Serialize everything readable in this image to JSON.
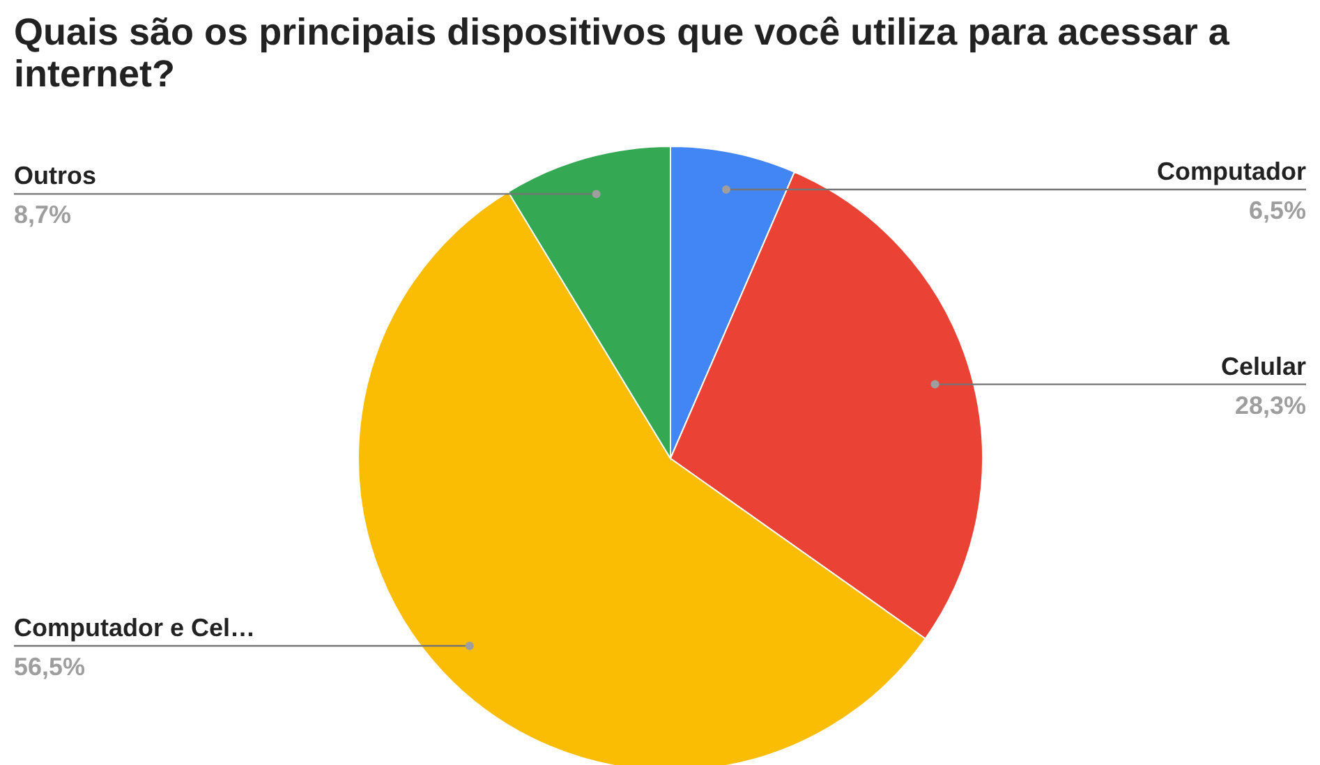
{
  "chart_data": {
    "type": "pie",
    "title": "Quais são os principais dispositivos que você utiliza para acessar a internet?",
    "categories": [
      "Computador",
      "Celular",
      "Computador e Cel…",
      "Outros"
    ],
    "values": [
      6.5,
      28.3,
      56.5,
      8.7
    ],
    "value_labels": [
      "6,5%",
      "28,3%",
      "56,5%",
      "8,7%"
    ],
    "colors": [
      "#4285f4",
      "#ea4335",
      "#fbbc04",
      "#34a853"
    ]
  }
}
